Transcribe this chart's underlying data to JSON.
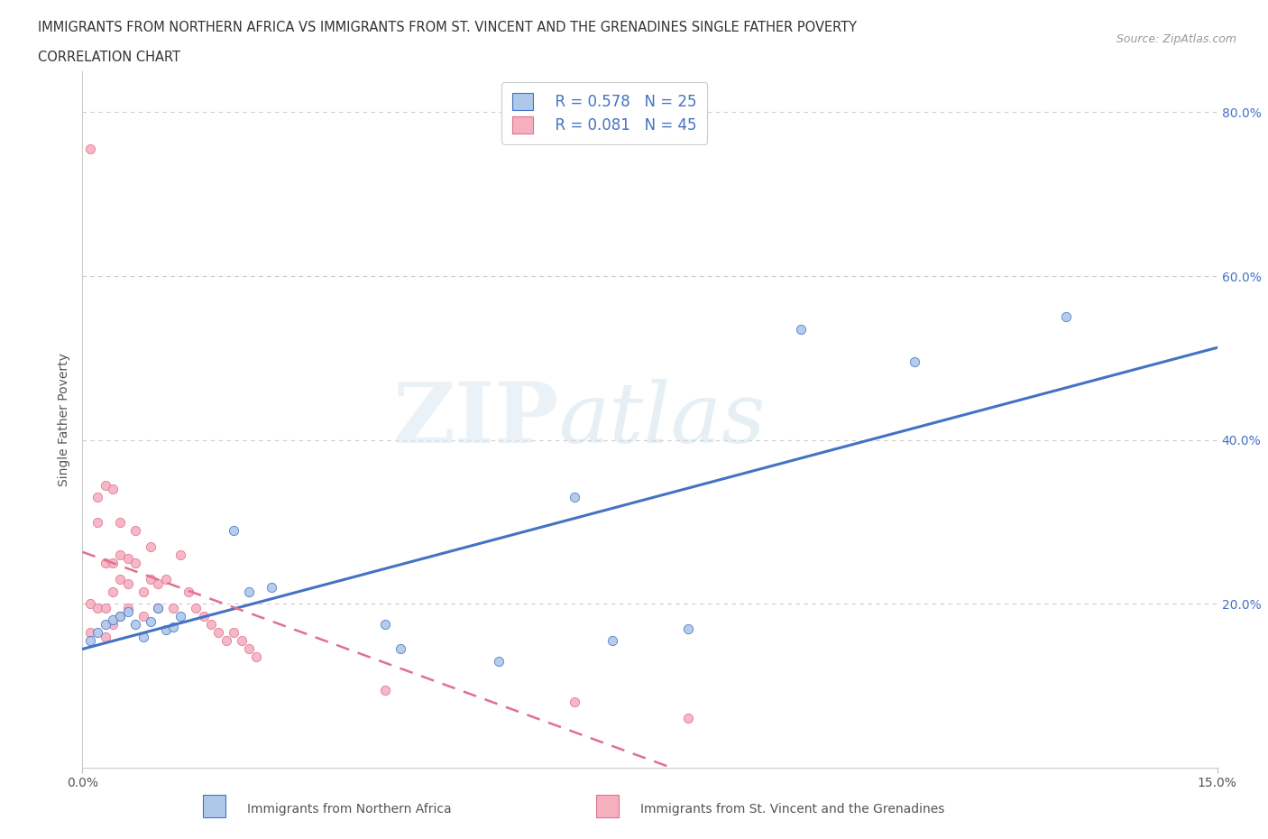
{
  "title_line1": "IMMIGRANTS FROM NORTHERN AFRICA VS IMMIGRANTS FROM ST. VINCENT AND THE GRENADINES SINGLE FATHER POVERTY",
  "title_line2": "CORRELATION CHART",
  "source_text": "Source: ZipAtlas.com",
  "ylabel": "Single Father Poverty",
  "xlim": [
    0.0,
    0.15
  ],
  "ylim": [
    0.0,
    0.85
  ],
  "legend_r1": "R = 0.578",
  "legend_n1": "N = 25",
  "legend_r2": "R = 0.081",
  "legend_n2": "N = 45",
  "series1_label": "Immigrants from Northern Africa",
  "series2_label": "Immigrants from St. Vincent and the Grenadines",
  "series1_color": "#adc8e8",
  "series2_color": "#f5b0c0",
  "line1_color": "#4472c4",
  "line2_color": "#e07090",
  "watermark_zip": "ZIP",
  "watermark_atlas": "atlas",
  "blue_x": [
    0.001,
    0.002,
    0.003,
    0.004,
    0.005,
    0.006,
    0.007,
    0.008,
    0.009,
    0.01,
    0.011,
    0.012,
    0.013,
    0.02,
    0.022,
    0.025,
    0.04,
    0.042,
    0.055,
    0.065,
    0.07,
    0.08,
    0.095,
    0.11,
    0.13
  ],
  "blue_y": [
    0.155,
    0.165,
    0.175,
    0.18,
    0.185,
    0.19,
    0.175,
    0.16,
    0.178,
    0.195,
    0.168,
    0.172,
    0.185,
    0.29,
    0.215,
    0.22,
    0.175,
    0.145,
    0.13,
    0.33,
    0.155,
    0.17,
    0.535,
    0.495,
    0.55
  ],
  "pink_x": [
    0.001,
    0.001,
    0.001,
    0.002,
    0.002,
    0.002,
    0.003,
    0.003,
    0.003,
    0.003,
    0.004,
    0.004,
    0.004,
    0.004,
    0.005,
    0.005,
    0.005,
    0.005,
    0.006,
    0.006,
    0.006,
    0.007,
    0.007,
    0.008,
    0.008,
    0.009,
    0.009,
    0.01,
    0.01,
    0.011,
    0.012,
    0.013,
    0.014,
    0.015,
    0.016,
    0.017,
    0.018,
    0.019,
    0.02,
    0.021,
    0.022,
    0.023,
    0.04,
    0.065,
    0.08
  ],
  "pink_y": [
    0.755,
    0.2,
    0.165,
    0.33,
    0.3,
    0.195,
    0.345,
    0.25,
    0.195,
    0.16,
    0.34,
    0.25,
    0.215,
    0.175,
    0.3,
    0.26,
    0.23,
    0.185,
    0.255,
    0.225,
    0.195,
    0.29,
    0.25,
    0.215,
    0.185,
    0.27,
    0.23,
    0.225,
    0.195,
    0.23,
    0.195,
    0.26,
    0.215,
    0.195,
    0.185,
    0.175,
    0.165,
    0.155,
    0.165,
    0.155,
    0.145,
    0.135,
    0.095,
    0.08,
    0.06
  ]
}
